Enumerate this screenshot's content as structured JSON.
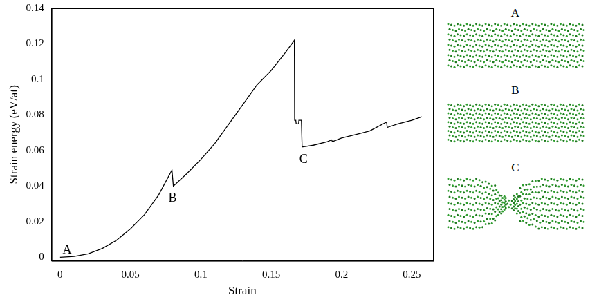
{
  "chart_data": {
    "type": "line",
    "x_label": "Strain",
    "y_label": "Strain energy (eV/at)",
    "color": "#000000",
    "grid": false,
    "xlim": [
      -0.006,
      0.265
    ],
    "xticks": [
      0,
      0.05,
      0.1,
      0.15,
      0.2,
      0.25
    ],
    "ylim": [
      -0.002,
      0.14
    ],
    "yticks": [
      0,
      0.02,
      0.04,
      0.06,
      0.08,
      0.1,
      0.12,
      0.14
    ],
    "x": [
      0,
      0.01,
      0.02,
      0.03,
      0.04,
      0.05,
      0.06,
      0.07,
      0.0795,
      0.0805,
      0.09,
      0.1,
      0.11,
      0.12,
      0.13,
      0.14,
      0.15,
      0.16,
      0.1665,
      0.1667,
      0.1675,
      0.1678,
      0.1695,
      0.1697,
      0.1715,
      0.172,
      0.18,
      0.19,
      0.193,
      0.1935,
      0.2,
      0.205,
      0.21,
      0.22,
      0.232,
      0.2325,
      0.24,
      0.25,
      0.257
    ],
    "values": [
      0,
      0.0005,
      0.002,
      0.005,
      0.0095,
      0.016,
      0.024,
      0.035,
      0.049,
      0.04,
      0.047,
      0.055,
      0.064,
      0.075,
      0.086,
      0.097,
      0.105,
      0.115,
      0.122,
      0.077,
      0.077,
      0.075,
      0.075,
      0.077,
      0.077,
      0.062,
      0.063,
      0.065,
      0.066,
      0.065,
      0.067,
      0.068,
      0.069,
      0.071,
      0.076,
      0.073,
      0.075,
      0.077,
      0.079
    ],
    "annotations": [
      {
        "text": "A",
        "x": 0.005,
        "y": 0.004
      },
      {
        "text": "B",
        "x": 0.08,
        "y": 0.033
      },
      {
        "text": "C",
        "x": 0.173,
        "y": 0.055
      }
    ],
    "panels": [
      {
        "label": "A"
      },
      {
        "label": "B"
      },
      {
        "label": "C"
      }
    ]
  }
}
